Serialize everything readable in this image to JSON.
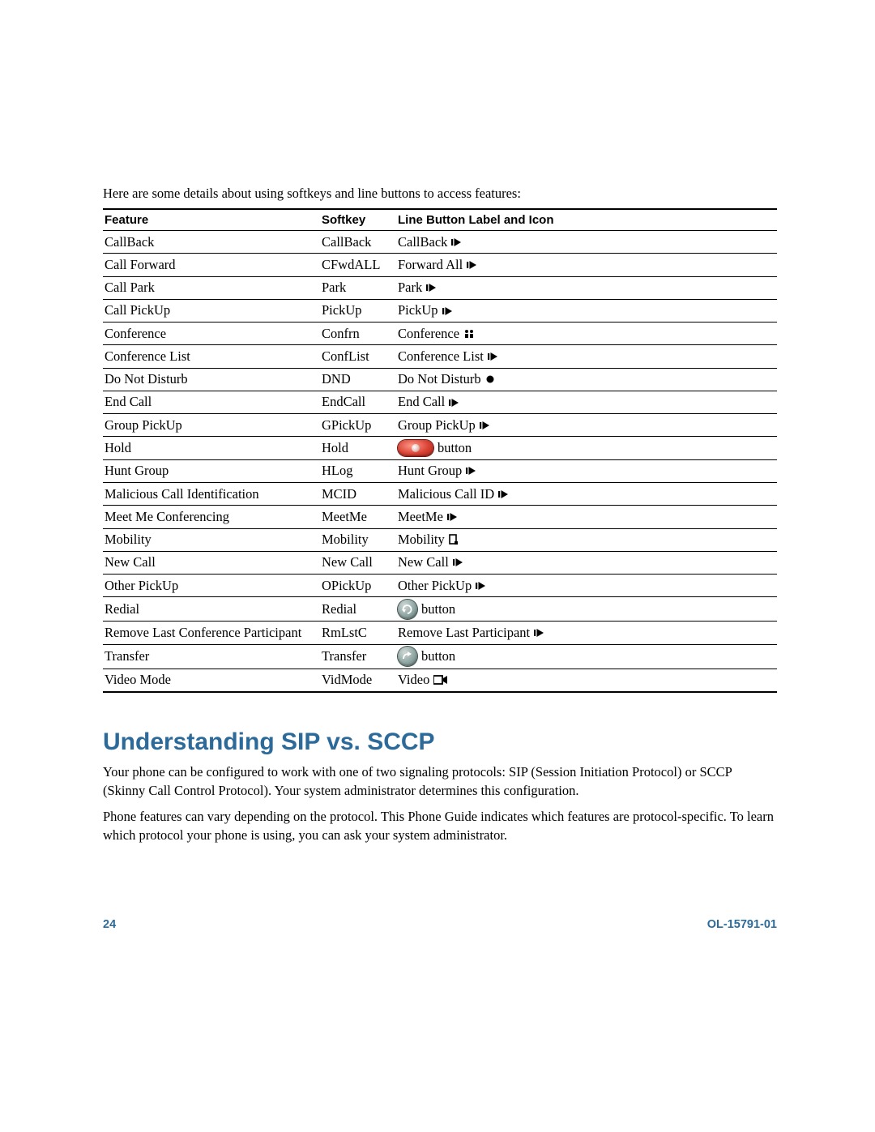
{
  "intro": "Here are some details about using softkeys and line buttons to access features:",
  "table": {
    "headers": [
      "Feature",
      "Softkey",
      "Line Button Label and Icon"
    ],
    "rows": [
      {
        "feature": "CallBack",
        "softkey": "CallBack",
        "label": "CallBack",
        "icon": "arrow"
      },
      {
        "feature": "Call Forward",
        "softkey": "CFwdALL",
        "label": "Forward All",
        "icon": "arrow"
      },
      {
        "feature": "Call Park",
        "softkey": "Park",
        "label": "Park",
        "icon": "arrow"
      },
      {
        "feature": "Call PickUp",
        "softkey": "PickUp",
        "label": "PickUp",
        "icon": "arrow"
      },
      {
        "feature": "Conference",
        "softkey": "Confrn",
        "label": "Conference",
        "icon": "conference"
      },
      {
        "feature": "Conference List",
        "softkey": "ConfList",
        "label": "Conference List",
        "icon": "arrow"
      },
      {
        "feature": "Do Not Disturb",
        "softkey": "DND",
        "label": "Do Not Disturb",
        "icon": "dot"
      },
      {
        "feature": "End Call",
        "softkey": "EndCall",
        "label": "End Call",
        "icon": "arrow"
      },
      {
        "feature": "Group PickUp",
        "softkey": "GPickUp",
        "label": "Group PickUp",
        "icon": "arrow"
      },
      {
        "feature": "Hold",
        "softkey": "Hold",
        "label": "button",
        "icon": "hold"
      },
      {
        "feature": "Hunt Group",
        "softkey": "HLog",
        "label": "Hunt Group",
        "icon": "arrow"
      },
      {
        "feature": "Malicious Call Identification",
        "softkey": "MCID",
        "label": "Malicious Call ID",
        "icon": "arrow"
      },
      {
        "feature": "Meet Me Conferencing",
        "softkey": "MeetMe",
        "label": "MeetMe",
        "icon": "arrow"
      },
      {
        "feature": "Mobility",
        "softkey": "Mobility",
        "label": "Mobility",
        "icon": "mobility"
      },
      {
        "feature": "New Call",
        "softkey": "New Call",
        "label": "New Call",
        "icon": "arrow"
      },
      {
        "feature": "Other PickUp",
        "softkey": "OPickUp",
        "label": "Other PickUp",
        "icon": "arrow"
      },
      {
        "feature": "Redial",
        "softkey": "Redial",
        "label": "button",
        "icon": "redial",
        "tall": true
      },
      {
        "feature": "Remove Last Conference Participant",
        "softkey": "RmLstC",
        "label": "Remove Last Participant",
        "icon": "arrow"
      },
      {
        "feature": "Transfer",
        "softkey": "Transfer",
        "label": "button",
        "icon": "transfer",
        "tall": true
      },
      {
        "feature": "Video Mode",
        "softkey": "VidMode",
        "label": "Video",
        "icon": "video"
      }
    ]
  },
  "section": {
    "title": "Understanding SIP vs. SCCP",
    "p1": "Your phone can be configured to work with one of two signaling protocols: SIP (Session Initiation Protocol) or SCCP (Skinny Call Control Protocol). Your system administrator determines this configuration.",
    "p2": "Phone features can vary depending on the protocol. This Phone Guide indicates which features are protocol-specific. To learn which protocol your phone is using, you can ask your system administrator."
  },
  "footer": {
    "page": "24",
    "doc": "OL-15791-01"
  },
  "colors": {
    "accent": "#2c6a9a",
    "text": "#000000",
    "border": "#000000"
  }
}
